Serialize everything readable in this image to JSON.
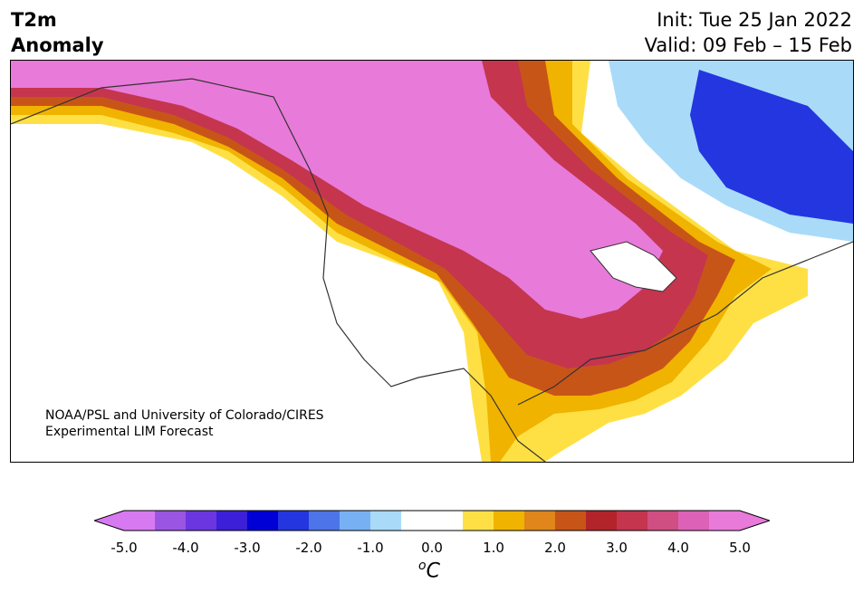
{
  "title": {
    "left_line1": "T2m",
    "left_line2": "Anomaly",
    "init": "Init: Tue 25 Jan 2022",
    "valid": "Valid: 09 Feb – 15 Feb"
  },
  "credit": {
    "line1": "NOAA/PSL and University of Colorado/CIRES",
    "line2": "Experimental LIM Forecast"
  },
  "colorbar": {
    "unit_sup": "o",
    "unit": "C",
    "ticks": [
      "-5.0",
      "-4.0",
      "-3.0",
      "-2.0",
      "-1.0",
      "0.0",
      "1.0",
      "2.0",
      "3.0",
      "4.0",
      "5.0"
    ],
    "colors": [
      "#d779f0",
      "#9a55e3",
      "#6b36e0",
      "#3b1fd9",
      "#0000d6",
      "#2436e0",
      "#4d74e8",
      "#77b1f4",
      "#a9dbf9",
      "#ffffff",
      "#ffffff",
      "#fee044",
      "#f0b300",
      "#e0861a",
      "#c85518",
      "#b3232a",
      "#c5354e",
      "#d04f82",
      "#de61b8",
      "#e87ad9"
    ]
  }
}
